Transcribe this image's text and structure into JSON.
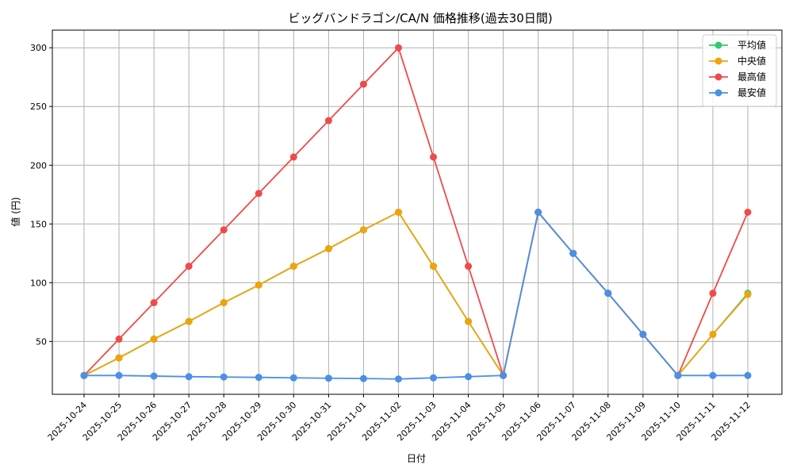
{
  "chart_data": {
    "type": "line",
    "title": "ビッグバンドラゴン/CA/N 価格推移(過去30日間)",
    "xlabel": "日付",
    "ylabel": "値 (円)",
    "ylim": [
      5,
      315
    ],
    "yticks": [
      50,
      100,
      150,
      200,
      250,
      300
    ],
    "grid": true,
    "legend_position": "top-right",
    "categories": [
      "2025-10-24",
      "2025-10-25",
      "2025-10-26",
      "2025-10-27",
      "2025-10-28",
      "2025-10-29",
      "2025-10-30",
      "2025-10-31",
      "2025-11-01",
      "2025-11-02",
      "2025-11-03",
      "2025-11-04",
      "2025-11-05",
      "2025-11-06",
      "2025-11-07",
      "2025-11-08",
      "2025-11-09",
      "2025-11-10",
      "2025-11-11",
      "2025-11-12"
    ],
    "series": [
      {
        "name": "平均値",
        "color": "#2ecc71",
        "values": [
          21,
          36,
          52,
          67,
          83,
          98,
          114,
          129,
          145,
          160,
          114,
          67,
          21,
          160,
          125,
          91,
          56,
          21,
          56,
          91
        ]
      },
      {
        "name": "中央値",
        "color": "#f0a30a",
        "values": [
          21,
          36,
          52,
          67,
          83,
          98,
          114,
          129,
          145,
          160,
          114,
          67,
          21,
          160,
          125,
          91,
          56,
          21,
          56,
          90
        ]
      },
      {
        "name": "最高値",
        "color": "#f04a4a",
        "values": [
          21,
          52,
          83,
          114,
          145,
          176,
          207,
          238,
          269,
          300,
          207,
          114,
          21,
          160,
          125,
          91,
          56,
          21,
          91,
          160
        ]
      },
      {
        "name": "最安値",
        "color": "#4a90e8",
        "values": [
          21,
          21,
          20.5,
          20,
          19.7,
          19.4,
          19,
          18.7,
          18.4,
          18,
          19,
          20,
          21,
          160,
          125,
          91,
          56,
          21,
          21,
          21
        ]
      }
    ]
  }
}
